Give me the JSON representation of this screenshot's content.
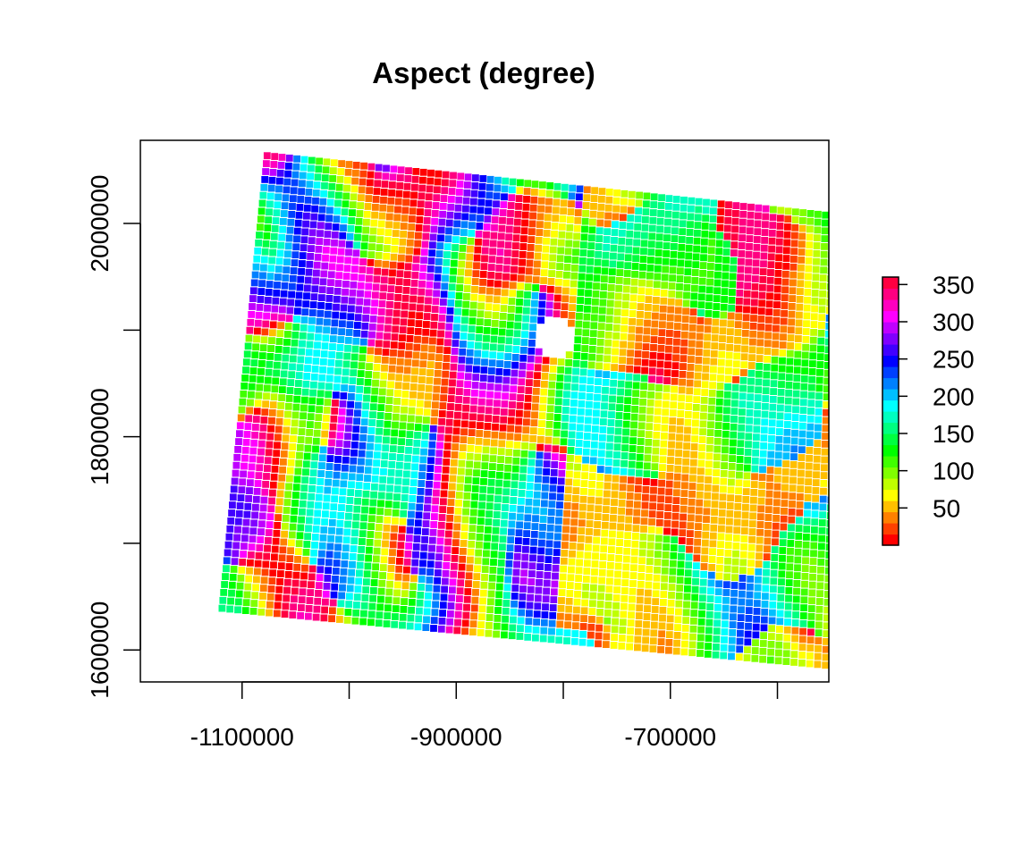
{
  "chart_data": {
    "type": "heatmap",
    "title": "Aspect (degree)",
    "xlabel": "",
    "ylabel": "",
    "x_range": [
      -1195000,
      -552000
    ],
    "y_range": [
      1570000,
      2078000
    ],
    "x_ticks": [
      -1100000,
      -1000000,
      -900000,
      -800000,
      -700000,
      -600000
    ],
    "x_tick_labels": [
      "-1100000",
      "",
      "-900000",
      "",
      "-700000",
      ""
    ],
    "y_ticks": [
      1600000,
      1700000,
      1800000,
      1900000,
      2000000
    ],
    "y_tick_labels": [
      "1600000",
      "",
      "1800000",
      "",
      "2000000"
    ],
    "grid": false,
    "value_range": [
      0,
      360
    ],
    "colorbar": {
      "ticks": [
        50,
        100,
        150,
        200,
        250,
        300,
        350
      ],
      "tick_labels": [
        "50",
        "100",
        "150",
        "200",
        "250",
        "300",
        "350"
      ],
      "palette": [
        "#ff0000",
        "#ff4000",
        "#ff8000",
        "#ffbf00",
        "#ffff00",
        "#bfff00",
        "#80ff00",
        "#40ff00",
        "#00ff00",
        "#00ff40",
        "#00ff80",
        "#00ffbf",
        "#00ffff",
        "#00bfff",
        "#0080ff",
        "#0040ff",
        "#0000ff",
        "#4000ff",
        "#8000ff",
        "#bf00ff",
        "#ff00ff",
        "#ff00bf",
        "#ff0080",
        "#ff0040"
      ],
      "placement": "right"
    },
    "raster_extent_corners_data": {
      "top_left": [
        -1080000,
        2068000
      ],
      "top_right": [
        -538000,
        2010000
      ],
      "bottom_right": [
        -552000,
        1582000
      ],
      "bottom_left": [
        -1123000,
        1636000
      ]
    }
  }
}
